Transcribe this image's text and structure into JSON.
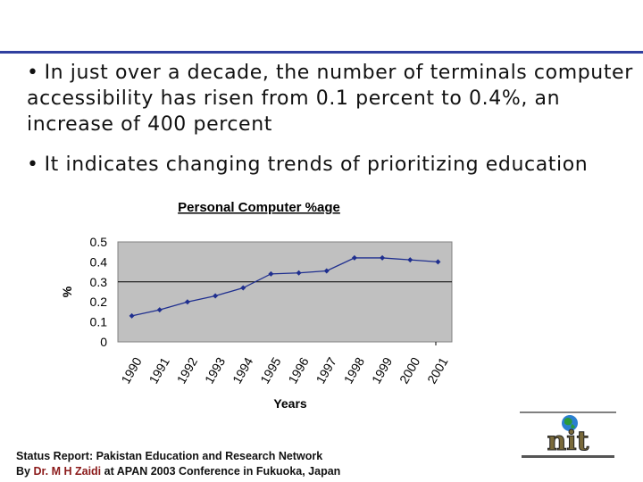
{
  "slide": {
    "bullets": [
      "In just over a decade, the number of terminals computer accessibility has risen from 0.1 percent to 0.4%, an increase of 400 percent",
      "It indicates changing trends of prioritizing education"
    ],
    "bullet_glyph": "•",
    "footer": {
      "line1": "Status Report: Pakistan Education and Research Network",
      "line2_prefix": "By ",
      "author": "Dr. M H Zaidi",
      "line2_suffix": " at APAN 2003 Conference in Fukuoka, Japan"
    },
    "logo": {
      "icon": "globe-logo-icon",
      "text": "nit"
    },
    "colors": {
      "rule": "#2f3f9f",
      "author": "#8b1a1a",
      "plot_bg": "#c0c0c0",
      "series": "#1f2f8f"
    }
  },
  "chart_data": {
    "type": "line",
    "title": "Personal Computer %age",
    "xlabel": "Years",
    "ylabel": "%",
    "categories": [
      "1990",
      "1991",
      "1992",
      "1993",
      "1994",
      "1995",
      "1996",
      "1997",
      "1998",
      "1999",
      "2000",
      "2001"
    ],
    "series": [
      {
        "values": [
          0.13,
          0.16,
          0.2,
          0.23,
          0.27,
          0.34,
          0.345,
          0.355,
          0.42,
          0.42,
          0.41,
          0.4
        ]
      }
    ],
    "ylim": [
      0,
      0.5
    ],
    "yticks": [
      "0",
      "0.1",
      "0.2",
      "0.3",
      "0.4",
      "0.5"
    ],
    "grid": true,
    "legend": "none"
  }
}
